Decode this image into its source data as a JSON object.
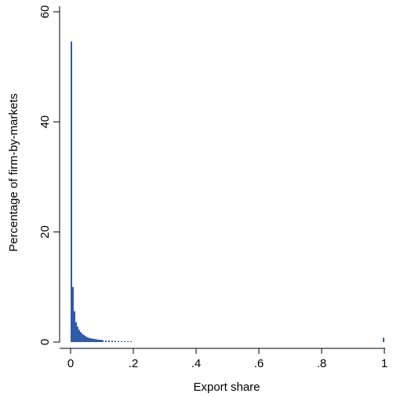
{
  "chart_data": {
    "type": "bar",
    "title": "",
    "xlabel": "Export share",
    "ylabel": "Percentage of firm-by-markets",
    "xlim": [
      0,
      1
    ],
    "ylim": [
      0,
      60
    ],
    "x_ticks": [
      "0",
      ".2",
      ".4",
      ".6",
      ".8",
      "1"
    ],
    "y_ticks": [
      "0",
      "20",
      "40",
      "60"
    ],
    "bar_color": "#2f5ba8",
    "grid": false,
    "legend": "none",
    "bin_width": 0.005,
    "series": [
      {
        "bins": [
          0,
          0.005,
          0.01,
          0.015,
          0.02,
          0.025,
          0.03,
          0.035,
          0.04,
          0.045,
          0.05,
          0.055,
          0.06,
          0.065,
          0.07,
          0.075,
          0.08,
          0.085,
          0.09,
          0.095,
          0.1,
          0.11,
          0.12,
          0.13,
          0.14,
          0.15,
          0.16,
          0.17,
          0.18,
          0.19,
          0.995
        ],
        "values": [
          54.6,
          10.0,
          5.6,
          3.6,
          2.8,
          2.2,
          1.8,
          1.5,
          1.3,
          1.1,
          0.9,
          0.8,
          0.7,
          0.65,
          0.6,
          0.55,
          0.5,
          0.45,
          0.42,
          0.4,
          0.35,
          0.3,
          0.28,
          0.25,
          0.22,
          0.2,
          0.18,
          0.16,
          0.15,
          0.14,
          0.8
        ]
      }
    ]
  }
}
